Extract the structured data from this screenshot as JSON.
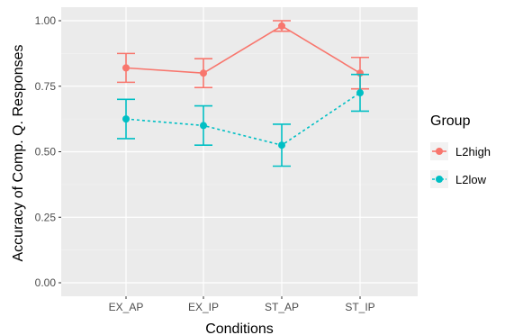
{
  "chart_data": {
    "type": "line",
    "xlabel": "Conditions",
    "ylabel": "Accuracy of Comp. Q. Responses",
    "categories": [
      "EX_AP",
      "EX_IP",
      "ST_AP",
      "ST_IP"
    ],
    "ylim": [
      0,
      1
    ],
    "yticks": [
      "0.00",
      "0.25",
      "0.50",
      "0.75",
      "1.00"
    ],
    "grid": true,
    "legend": {
      "title": "Group",
      "placement": "right"
    },
    "series": [
      {
        "name": "L2high",
        "color": "#F8766D",
        "linestyle": "solid",
        "values": [
          0.82,
          0.8,
          0.98,
          0.8
        ],
        "error_low": [
          0.765,
          0.745,
          0.96,
          0.74
        ],
        "error_high": [
          0.875,
          0.855,
          1.0,
          0.86
        ]
      },
      {
        "name": "L2low",
        "color": "#00BFC4",
        "linestyle": "dotted",
        "values": [
          0.625,
          0.6,
          0.525,
          0.725
        ],
        "error_low": [
          0.55,
          0.525,
          0.445,
          0.655
        ],
        "error_high": [
          0.7,
          0.675,
          0.605,
          0.795
        ]
      }
    ]
  }
}
